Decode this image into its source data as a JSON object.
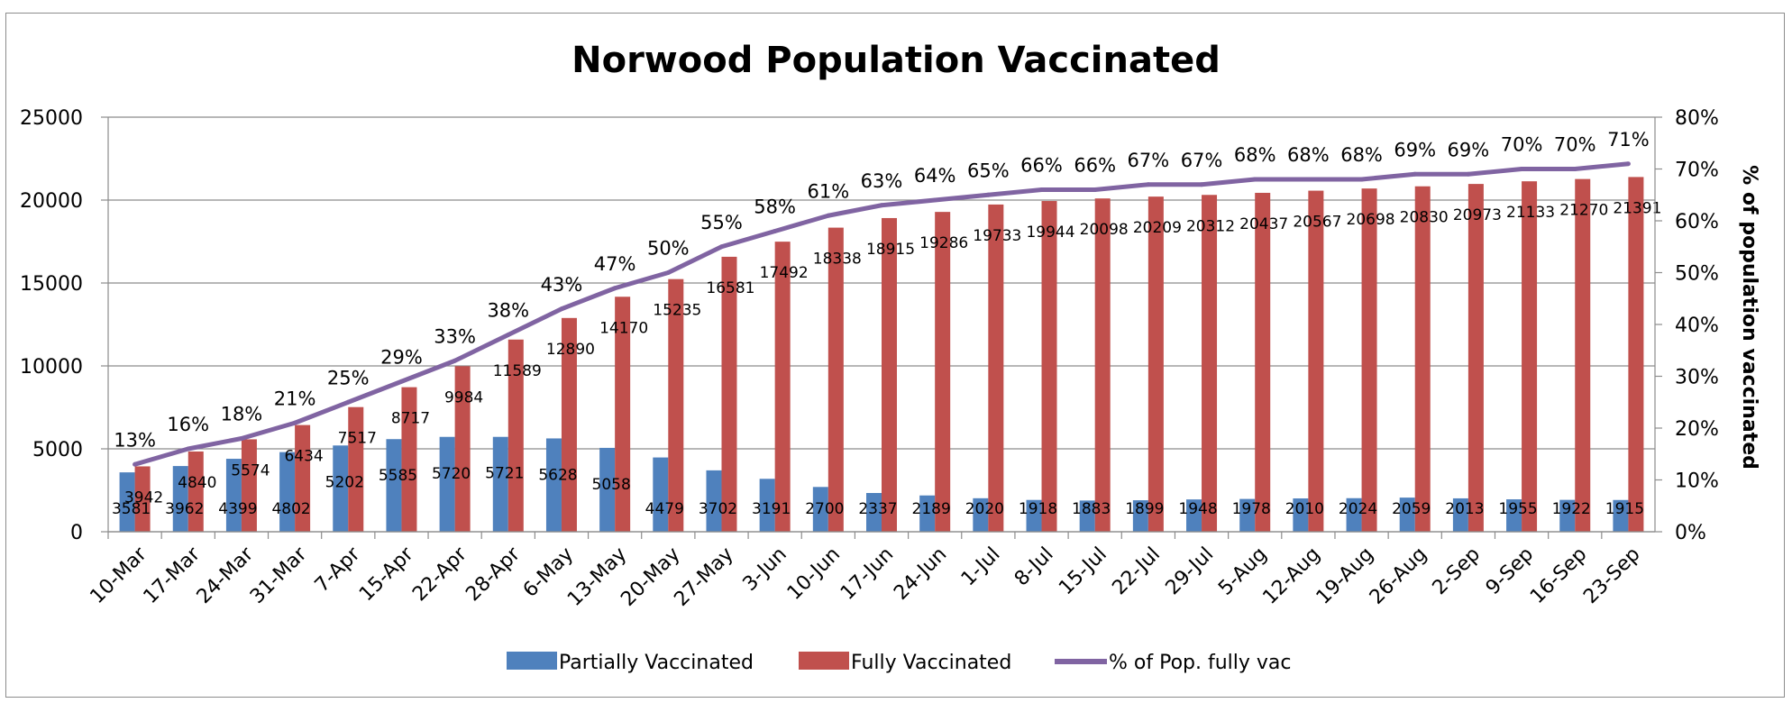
{
  "chart_data": {
    "type": "bar+line",
    "title": "Norwood Population Vaccinated",
    "categories": [
      "10-Mar",
      "17-Mar",
      "24-Mar",
      "31-Mar",
      "7-Apr",
      "15-Apr",
      "22-Apr",
      "28-Apr",
      "6-May",
      "13-May",
      "20-May",
      "27-May",
      "3-Jun",
      "10-Jun",
      "17-Jun",
      "24-Jun",
      "1-Jul",
      "8-Jul",
      "15-Jul",
      "22-Jul",
      "29-Jul",
      "5-Aug",
      "12-Aug",
      "19-Aug",
      "26-Aug",
      "2-Sep",
      "9-Sep",
      "16-Sep",
      "23-Sep"
    ],
    "series": [
      {
        "name": "Partially Vaccinated",
        "type": "bar",
        "axis": "left",
        "color": "#4f81bd",
        "values": [
          3581,
          3962,
          4399,
          4802,
          5202,
          5585,
          5720,
          5721,
          5628,
          5058,
          4479,
          3702,
          3191,
          2700,
          2337,
          2189,
          2020,
          1918,
          1883,
          1899,
          1948,
          1978,
          2010,
          2024,
          2059,
          2013,
          1955,
          1922,
          1915
        ]
      },
      {
        "name": "Fully Vaccinated",
        "type": "bar",
        "axis": "left",
        "color": "#c0504d",
        "values": [
          3942,
          4840,
          5574,
          6434,
          7517,
          8717,
          9984,
          11589,
          12890,
          14170,
          15235,
          16581,
          17492,
          18338,
          18915,
          19286,
          19733,
          19944,
          20098,
          20209,
          20312,
          20437,
          20567,
          20698,
          20830,
          20973,
          21133,
          21270,
          21391
        ]
      },
      {
        "name": "% of Pop. fully vac",
        "type": "line",
        "axis": "right",
        "color": "#8064a2",
        "values": [
          13,
          16,
          18,
          21,
          25,
          29,
          33,
          38,
          43,
          47,
          50,
          55,
          58,
          61,
          63,
          64,
          65,
          66,
          66,
          67,
          67,
          68,
          68,
          68,
          69,
          69,
          70,
          70,
          71
        ],
        "labels": [
          "13%",
          "16%",
          "18%",
          "21%",
          "25%",
          "29%",
          "33%",
          "38%",
          "43%",
          "47%",
          "50%",
          "55%",
          "58%",
          "61%",
          "63%",
          "64%",
          "65%",
          "66%",
          "66%",
          "67%",
          "67%",
          "68%",
          "68%",
          "68%",
          "69%",
          "69%",
          "70%",
          "70%",
          "71%"
        ]
      }
    ],
    "yaxis_left": {
      "min": 0,
      "max": 25000,
      "ticks": [
        "0",
        "5000",
        "10000",
        "15000",
        "20000",
        "25000"
      ],
      "label": ""
    },
    "yaxis_right": {
      "min": 0,
      "max": 80,
      "ticks": [
        "0%",
        "10%",
        "20%",
        "30%",
        "40%",
        "50%",
        "60%",
        "70%",
        "80%"
      ],
      "label": "% of population vaccinated"
    },
    "xlabel": "",
    "grid": true,
    "legend_position": "bottom"
  }
}
